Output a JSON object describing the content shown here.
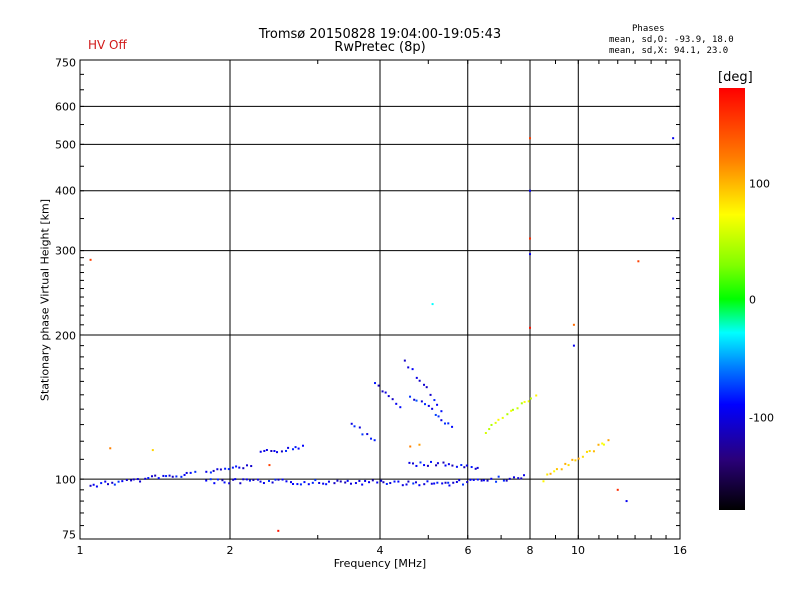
{
  "header": {
    "title_line1": "Tromsø 20150828 19:04:00-19:05:43",
    "title_line2": "RwPretec (8p)",
    "hv_status": "HV Off",
    "stats_heading": "Phases",
    "stats_o": "mean, sd,O: -93.9, 18.0",
    "stats_x": "mean, sd,X:  94.1, 23.0"
  },
  "colorbar": {
    "unit": "[deg]",
    "ticks": [
      "100",
      "0",
      "-100"
    ]
  },
  "chart_data": {
    "type": "scatter",
    "xlabel": "Frequency [MHz]",
    "ylabel": "Stationary phase Virtual Height [km]",
    "x_scale": "log",
    "y_scale": "log",
    "xlim": [
      1,
      16
    ],
    "ylim": [
      75,
      750
    ],
    "x_ticks": [
      "1",
      "2",
      "4",
      "6",
      "8",
      "10",
      "16"
    ],
    "y_ticks": [
      "75",
      "100",
      "200",
      "300",
      "400",
      "500",
      "600",
      "750"
    ],
    "grid": true,
    "colorbar_range": [
      -180,
      180
    ],
    "traces": [
      {
        "x0": 1.05,
        "x1": 1.7,
        "y0": 97,
        "y1": 103,
        "phase": -100
      },
      {
        "x0": 1.8,
        "x1": 5.5,
        "y0": 99,
        "y1": 98,
        "phase": -100
      },
      {
        "x0": 5.5,
        "x1": 7.8,
        "y0": 98,
        "y1": 101,
        "phase": -95
      },
      {
        "x0": 1.8,
        "x1": 2.2,
        "y0": 103,
        "y1": 107,
        "phase": -100
      },
      {
        "x0": 2.3,
        "x1": 2.8,
        "y0": 113,
        "y1": 117,
        "phase": -100
      },
      {
        "x0": 4.6,
        "x1": 6.3,
        "y0": 108,
        "y1": 106,
        "phase": -100
      },
      {
        "x0": 3.5,
        "x1": 3.9,
        "y0": 130,
        "y1": 120,
        "phase": -100
      },
      {
        "x0": 3.9,
        "x1": 4.4,
        "y0": 160,
        "y1": 140,
        "phase": -100
      },
      {
        "x0": 4.5,
        "x1": 5.3,
        "y0": 175,
        "y1": 140,
        "phase": -100
      },
      {
        "x0": 4.6,
        "x1": 5.6,
        "y0": 150,
        "y1": 128,
        "phase": -90
      },
      {
        "x0": 6.5,
        "x1": 8.2,
        "y0": 125,
        "y1": 150,
        "phase": 60
      },
      {
        "x0": 8.5,
        "x1": 11.5,
        "y0": 100,
        "y1": 120,
        "phase": 90
      }
    ],
    "points": [
      {
        "x": 1.05,
        "y": 287,
        "phase": 150
      },
      {
        "x": 1.15,
        "y": 116,
        "phase": 120
      },
      {
        "x": 1.4,
        "y": 115,
        "phase": 90
      },
      {
        "x": 4.6,
        "y": 117,
        "phase": 120
      },
      {
        "x": 4.8,
        "y": 118,
        "phase": 110
      },
      {
        "x": 5.1,
        "y": 232,
        "phase": -30
      },
      {
        "x": 8.0,
        "y": 515,
        "phase": 150
      },
      {
        "x": 8.0,
        "y": 400,
        "phase": -100
      },
      {
        "x": 8.0,
        "y": 318,
        "phase": 160
      },
      {
        "x": 8.0,
        "y": 295,
        "phase": -100
      },
      {
        "x": 8.0,
        "y": 207,
        "phase": 170
      },
      {
        "x": 9.8,
        "y": 190,
        "phase": -100
      },
      {
        "x": 9.8,
        "y": 210,
        "phase": 130
      },
      {
        "x": 13.2,
        "y": 285,
        "phase": 150
      },
      {
        "x": 15.5,
        "y": 515,
        "phase": -100
      },
      {
        "x": 15.5,
        "y": 350,
        "phase": -100
      },
      {
        "x": 2.4,
        "y": 107,
        "phase": 150
      },
      {
        "x": 2.5,
        "y": 78,
        "phase": 170
      },
      {
        "x": 12.0,
        "y": 95,
        "phase": 160
      },
      {
        "x": 12.5,
        "y": 90,
        "phase": -100
      }
    ]
  }
}
